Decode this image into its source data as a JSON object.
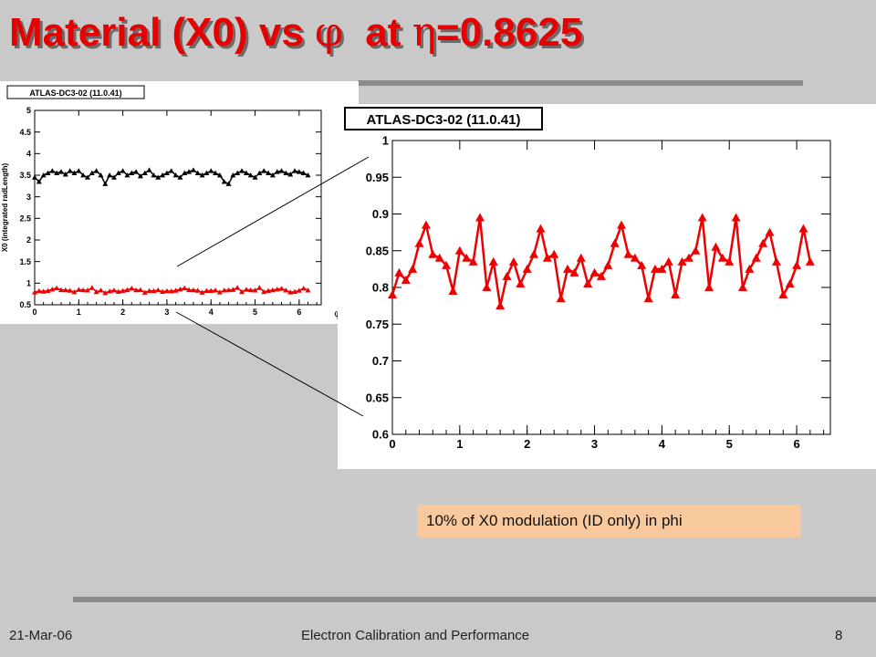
{
  "slide": {
    "title_pre": "Material (X0) vs ",
    "phi_symbol": "φ",
    "title_mid": "  at ",
    "eta_symbol": "η",
    "title_post": "=0.8625",
    "note": "10% of X0 modulation (ID only) in phi",
    "footer_date": "21-Mar-06",
    "footer_title": "Electron Calibration and Performance",
    "footer_page": "8"
  },
  "colors": {
    "title": "#e80000",
    "series_red": "#ee0000",
    "series_black": "#000000",
    "note_bg": "#f7c99c"
  },
  "chart_data": [
    {
      "type": "line",
      "title": "ATLAS-DC3-02 (11.0.41)",
      "xlabel": "φ",
      "ylabel": "X0 (integrated radLength)",
      "xlim": [
        0,
        6.5
      ],
      "ylim": [
        0.5,
        5
      ],
      "xticks": [
        "0",
        "1",
        "2",
        "3",
        "4",
        "5",
        "6"
      ],
      "yticks": [
        "0.5",
        "1",
        "1.5",
        "2",
        "2.5",
        "3",
        "3.5",
        "4",
        "4.5",
        "5"
      ],
      "series": [
        {
          "color": "#000000",
          "x": [
            0.0,
            0.1,
            0.2,
            0.3,
            0.4,
            0.5,
            0.6,
            0.7,
            0.8,
            0.9,
            1.0,
            1.1,
            1.2,
            1.3,
            1.4,
            1.5,
            1.6,
            1.7,
            1.8,
            1.9,
            2.0,
            2.1,
            2.2,
            2.3,
            2.4,
            2.5,
            2.6,
            2.7,
            2.8,
            2.9,
            3.0,
            3.1,
            3.2,
            3.3,
            3.4,
            3.5,
            3.6,
            3.7,
            3.8,
            3.9,
            4.0,
            4.1,
            4.2,
            4.3,
            4.4,
            4.5,
            4.6,
            4.7,
            4.8,
            4.9,
            5.0,
            5.1,
            5.2,
            5.3,
            5.4,
            5.5,
            5.6,
            5.7,
            5.8,
            5.9,
            6.0,
            6.1,
            6.2
          ],
          "y": [
            3.45,
            3.35,
            3.5,
            3.55,
            3.6,
            3.55,
            3.58,
            3.52,
            3.6,
            3.55,
            3.6,
            3.5,
            3.45,
            3.55,
            3.6,
            3.5,
            3.3,
            3.5,
            3.45,
            3.55,
            3.6,
            3.5,
            3.55,
            3.58,
            3.48,
            3.55,
            3.62,
            3.5,
            3.45,
            3.5,
            3.55,
            3.6,
            3.5,
            3.45,
            3.55,
            3.58,
            3.62,
            3.55,
            3.5,
            3.55,
            3.6,
            3.55,
            3.5,
            3.35,
            3.3,
            3.5,
            3.55,
            3.6,
            3.55,
            3.5,
            3.45,
            3.55,
            3.6,
            3.55,
            3.5,
            3.58,
            3.6,
            3.55,
            3.52,
            3.6,
            3.58,
            3.55,
            3.5
          ]
        },
        {
          "color": "#ee0000",
          "x": [
            0.0,
            0.1,
            0.2,
            0.3,
            0.4,
            0.5,
            0.6,
            0.7,
            0.8,
            0.9,
            1.0,
            1.1,
            1.2,
            1.3,
            1.4,
            1.5,
            1.6,
            1.7,
            1.8,
            1.9,
            2.0,
            2.1,
            2.2,
            2.3,
            2.4,
            2.5,
            2.6,
            2.7,
            2.8,
            2.9,
            3.0,
            3.1,
            3.2,
            3.3,
            3.4,
            3.5,
            3.6,
            3.7,
            3.8,
            3.9,
            4.0,
            4.1,
            4.2,
            4.3,
            4.4,
            4.5,
            4.6,
            4.7,
            4.8,
            4.9,
            5.0,
            5.1,
            5.2,
            5.3,
            5.4,
            5.5,
            5.6,
            5.7,
            5.8,
            5.9,
            6.0,
            6.1,
            6.2
          ],
          "y": [
            0.79,
            0.82,
            0.81,
            0.825,
            0.86,
            0.885,
            0.845,
            0.84,
            0.83,
            0.795,
            0.85,
            0.84,
            0.835,
            0.895,
            0.8,
            0.835,
            0.775,
            0.815,
            0.835,
            0.805,
            0.825,
            0.845,
            0.88,
            0.84,
            0.845,
            0.785,
            0.825,
            0.82,
            0.84,
            0.805,
            0.82,
            0.815,
            0.83,
            0.86,
            0.885,
            0.845,
            0.84,
            0.83,
            0.785,
            0.825,
            0.825,
            0.835,
            0.79,
            0.835,
            0.84,
            0.85,
            0.895,
            0.8,
            0.855,
            0.84,
            0.835,
            0.895,
            0.8,
            0.825,
            0.84,
            0.86,
            0.875,
            0.835,
            0.79,
            0.805,
            0.83,
            0.88,
            0.835
          ]
        }
      ]
    },
    {
      "type": "line",
      "title": "ATLAS-DC3-02 (11.0.41)",
      "xlim": [
        0,
        6.5
      ],
      "ylim": [
        0.6,
        1.0
      ],
      "xticks": [
        "0",
        "1",
        "2",
        "3",
        "4",
        "5",
        "6"
      ],
      "yticks": [
        "0.6",
        "0.65",
        "0.7",
        "0.75",
        "0.8",
        "0.85",
        "0.9",
        "0.95",
        "1"
      ],
      "series": [
        {
          "color": "#ee0000",
          "x": [
            0.0,
            0.1,
            0.2,
            0.3,
            0.4,
            0.5,
            0.6,
            0.7,
            0.8,
            0.9,
            1.0,
            1.1,
            1.2,
            1.3,
            1.4,
            1.5,
            1.6,
            1.7,
            1.8,
            1.9,
            2.0,
            2.1,
            2.2,
            2.3,
            2.4,
            2.5,
            2.6,
            2.7,
            2.8,
            2.9,
            3.0,
            3.1,
            3.2,
            3.3,
            3.4,
            3.5,
            3.6,
            3.7,
            3.8,
            3.9,
            4.0,
            4.1,
            4.2,
            4.3,
            4.4,
            4.5,
            4.6,
            4.7,
            4.8,
            4.9,
            5.0,
            5.1,
            5.2,
            5.3,
            5.4,
            5.5,
            5.6,
            5.7,
            5.8,
            5.9,
            6.0,
            6.1,
            6.2
          ],
          "y": [
            0.79,
            0.82,
            0.81,
            0.825,
            0.86,
            0.885,
            0.845,
            0.84,
            0.83,
            0.795,
            0.85,
            0.84,
            0.835,
            0.895,
            0.8,
            0.835,
            0.775,
            0.815,
            0.835,
            0.805,
            0.825,
            0.845,
            0.88,
            0.84,
            0.845,
            0.785,
            0.825,
            0.82,
            0.84,
            0.805,
            0.82,
            0.815,
            0.83,
            0.86,
            0.885,
            0.845,
            0.84,
            0.83,
            0.785,
            0.825,
            0.825,
            0.835,
            0.79,
            0.835,
            0.84,
            0.85,
            0.895,
            0.8,
            0.855,
            0.84,
            0.835,
            0.895,
            0.8,
            0.825,
            0.84,
            0.86,
            0.875,
            0.835,
            0.79,
            0.805,
            0.83,
            0.88,
            0.835
          ]
        }
      ]
    }
  ]
}
